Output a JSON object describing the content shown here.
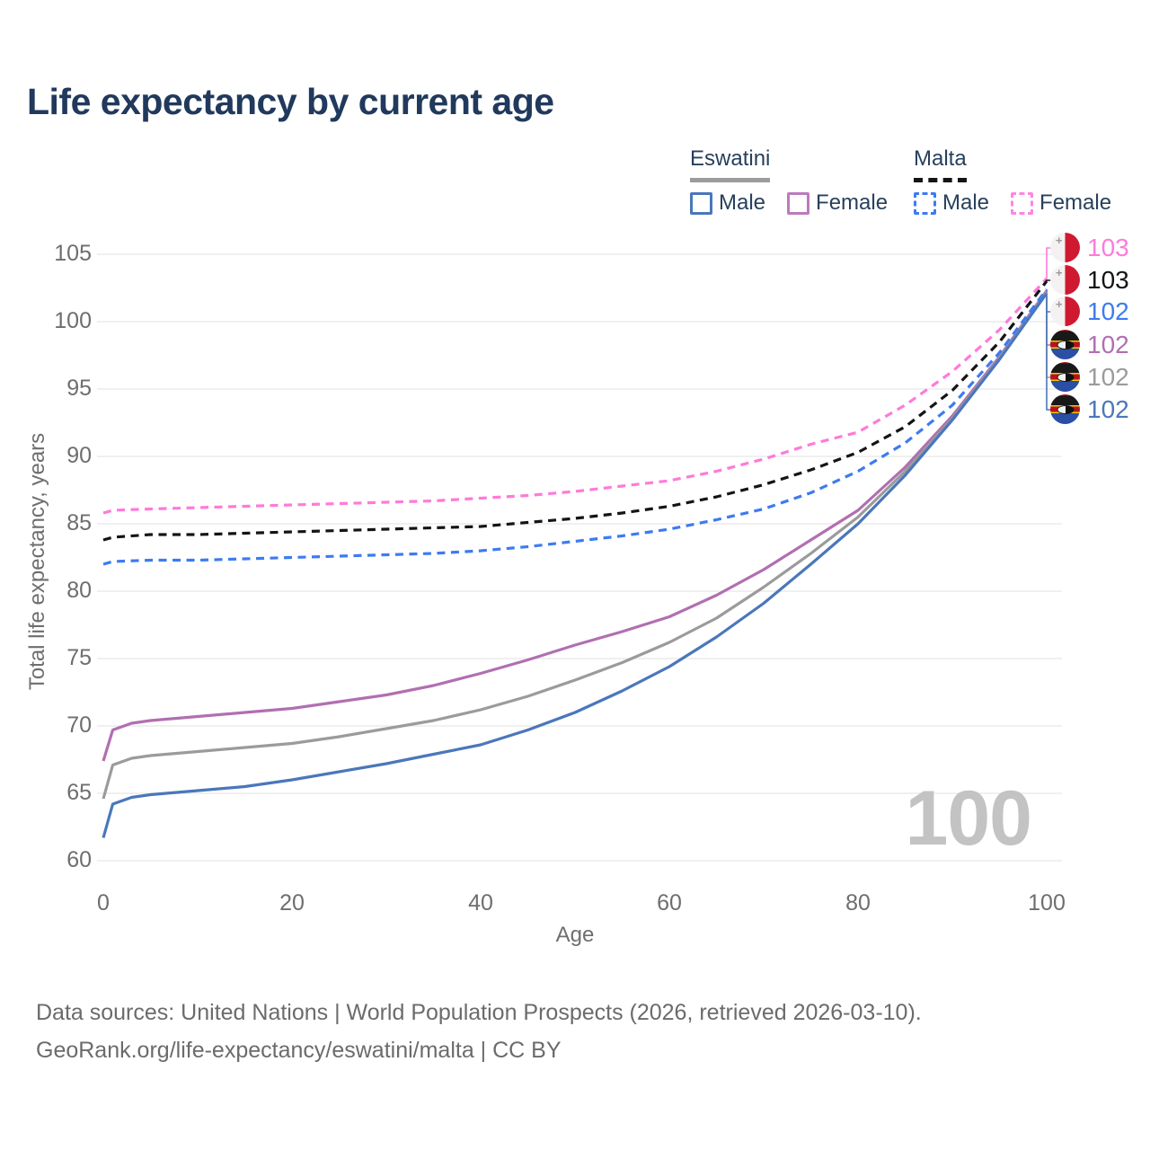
{
  "title": "Life expectancy by current age",
  "legend": {
    "groups": [
      {
        "label": "Eswatini",
        "line_style": "solid",
        "line_color": "#9b9b9b",
        "items": [
          {
            "label": "Male",
            "color": "#4a77bb"
          },
          {
            "label": "Female",
            "color": "#bd7abd"
          }
        ]
      },
      {
        "label": "Malta",
        "line_style": "dashed",
        "line_color": "#141414",
        "items": [
          {
            "label": "Male",
            "color": "#3d7bf0"
          },
          {
            "label": "Female",
            "color": "#ff85e2"
          }
        ]
      }
    ]
  },
  "chart_data": {
    "type": "line",
    "title": "Life expectancy by current age",
    "xlabel": "Age",
    "ylabel": "Total life expectancy, years",
    "xlim": [
      0,
      100
    ],
    "ylim": [
      60,
      105
    ],
    "x_ticks": [
      0,
      20,
      40,
      60,
      80,
      100
    ],
    "y_ticks": [
      105,
      100,
      95,
      90,
      85,
      80,
      75,
      70,
      65,
      60
    ],
    "grid": "horizontal-only",
    "hovered_age_indicator": "100",
    "series": [
      {
        "name": "Malta Female",
        "country": "Malta",
        "style": "dashed",
        "color": "#ff7ad9",
        "end_label": "103",
        "flag": "malta",
        "points": [
          [
            0,
            85.8
          ],
          [
            1,
            86.0
          ],
          [
            5,
            86.1
          ],
          [
            10,
            86.2
          ],
          [
            15,
            86.3
          ],
          [
            20,
            86.4
          ],
          [
            25,
            86.5
          ],
          [
            30,
            86.6
          ],
          [
            35,
            86.7
          ],
          [
            40,
            86.9
          ],
          [
            45,
            87.1
          ],
          [
            50,
            87.4
          ],
          [
            55,
            87.8
          ],
          [
            60,
            88.2
          ],
          [
            65,
            88.9
          ],
          [
            70,
            89.8
          ],
          [
            75,
            90.9
          ],
          [
            80,
            91.8
          ],
          [
            85,
            93.8
          ],
          [
            90,
            96.3
          ],
          [
            95,
            99.4
          ],
          [
            100,
            103.2
          ]
        ]
      },
      {
        "name": "Malta",
        "country": "Malta",
        "style": "dashed",
        "color": "#141414",
        "end_label": "103",
        "flag": "malta",
        "points": [
          [
            0,
            83.8
          ],
          [
            1,
            84.0
          ],
          [
            5,
            84.2
          ],
          [
            10,
            84.2
          ],
          [
            15,
            84.3
          ],
          [
            20,
            84.4
          ],
          [
            25,
            84.5
          ],
          [
            30,
            84.6
          ],
          [
            35,
            84.7
          ],
          [
            40,
            84.8
          ],
          [
            45,
            85.1
          ],
          [
            50,
            85.4
          ],
          [
            55,
            85.8
          ],
          [
            60,
            86.3
          ],
          [
            65,
            87.0
          ],
          [
            70,
            87.9
          ],
          [
            75,
            89.0
          ],
          [
            80,
            90.3
          ],
          [
            85,
            92.2
          ],
          [
            90,
            94.9
          ],
          [
            95,
            98.5
          ],
          [
            100,
            103.0
          ]
        ]
      },
      {
        "name": "Malta Male",
        "country": "Malta",
        "style": "dashed",
        "color": "#3d7bf0",
        "end_label": "102",
        "flag": "malta",
        "points": [
          [
            0,
            82.0
          ],
          [
            1,
            82.2
          ],
          [
            5,
            82.3
          ],
          [
            10,
            82.3
          ],
          [
            15,
            82.4
          ],
          [
            20,
            82.5
          ],
          [
            25,
            82.6
          ],
          [
            30,
            82.7
          ],
          [
            35,
            82.8
          ],
          [
            40,
            83.0
          ],
          [
            45,
            83.3
          ],
          [
            50,
            83.7
          ],
          [
            55,
            84.1
          ],
          [
            60,
            84.6
          ],
          [
            65,
            85.3
          ],
          [
            70,
            86.1
          ],
          [
            75,
            87.3
          ],
          [
            80,
            88.9
          ],
          [
            85,
            91.0
          ],
          [
            90,
            93.8
          ],
          [
            95,
            97.7
          ],
          [
            100,
            102.4
          ]
        ]
      },
      {
        "name": "Eswatini Female",
        "country": "Eswatini",
        "style": "solid",
        "color": "#b16fb1",
        "end_label": "102",
        "flag": "eswatini",
        "points": [
          [
            0,
            67.4
          ],
          [
            1,
            69.7
          ],
          [
            3,
            70.2
          ],
          [
            5,
            70.4
          ],
          [
            10,
            70.7
          ],
          [
            15,
            71.0
          ],
          [
            20,
            71.3
          ],
          [
            25,
            71.8
          ],
          [
            30,
            72.3
          ],
          [
            35,
            73.0
          ],
          [
            40,
            73.9
          ],
          [
            45,
            74.9
          ],
          [
            50,
            76.0
          ],
          [
            55,
            77.0
          ],
          [
            60,
            78.1
          ],
          [
            65,
            79.7
          ],
          [
            70,
            81.6
          ],
          [
            75,
            83.8
          ],
          [
            80,
            86.0
          ],
          [
            85,
            89.2
          ],
          [
            90,
            93.0
          ],
          [
            95,
            97.4
          ],
          [
            100,
            102.3
          ]
        ]
      },
      {
        "name": "Eswatini",
        "country": "Eswatini",
        "style": "solid",
        "color": "#9b9b9b",
        "end_label": "102",
        "flag": "eswatini",
        "points": [
          [
            0,
            64.6
          ],
          [
            1,
            67.1
          ],
          [
            3,
            67.6
          ],
          [
            5,
            67.8
          ],
          [
            10,
            68.1
          ],
          [
            15,
            68.4
          ],
          [
            20,
            68.7
          ],
          [
            25,
            69.2
          ],
          [
            30,
            69.8
          ],
          [
            35,
            70.4
          ],
          [
            40,
            71.2
          ],
          [
            45,
            72.2
          ],
          [
            50,
            73.4
          ],
          [
            55,
            74.7
          ],
          [
            60,
            76.2
          ],
          [
            65,
            78.0
          ],
          [
            70,
            80.3
          ],
          [
            75,
            82.8
          ],
          [
            80,
            85.5
          ],
          [
            85,
            88.9
          ],
          [
            90,
            92.8
          ],
          [
            95,
            97.3
          ],
          [
            100,
            102.2
          ]
        ]
      },
      {
        "name": "Eswatini Male",
        "country": "Eswatini",
        "style": "solid",
        "color": "#4a77bb",
        "end_label": "102",
        "flag": "eswatini",
        "points": [
          [
            0,
            61.7
          ],
          [
            1,
            64.2
          ],
          [
            3,
            64.7
          ],
          [
            5,
            64.9
          ],
          [
            10,
            65.2
          ],
          [
            15,
            65.5
          ],
          [
            20,
            66.0
          ],
          [
            25,
            66.6
          ],
          [
            30,
            67.2
          ],
          [
            35,
            67.9
          ],
          [
            40,
            68.6
          ],
          [
            45,
            69.7
          ],
          [
            50,
            71.0
          ],
          [
            55,
            72.6
          ],
          [
            60,
            74.4
          ],
          [
            65,
            76.6
          ],
          [
            70,
            79.1
          ],
          [
            75,
            82.0
          ],
          [
            80,
            85.0
          ],
          [
            85,
            88.6
          ],
          [
            90,
            92.7
          ],
          [
            95,
            97.2
          ],
          [
            100,
            102.1
          ]
        ]
      }
    ]
  },
  "footer": {
    "line1": "Data sources: United Nations | World Population Prospects (2026, retrieved 2026-03-10).",
    "line2": "GeoRank.org/life-expectancy/eswatini/malta | CC BY"
  },
  "colors": {
    "title_text": "#21395c",
    "axis_text": "#6e6e6e",
    "gridline": "#ebebeb",
    "watermark": "#c3c3c3"
  }
}
